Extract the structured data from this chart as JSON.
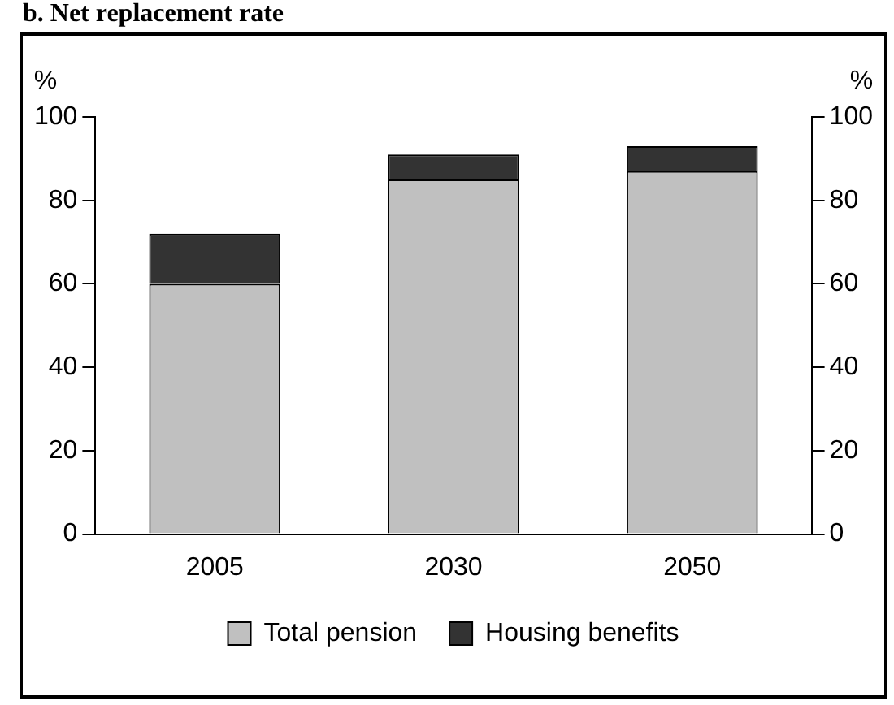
{
  "chart_data": {
    "type": "bar",
    "title": "b. Net replacement rate",
    "ylabel": "%",
    "y2label": "%",
    "categories": [
      "2005",
      "2030",
      "2050"
    ],
    "stacked": true,
    "series": [
      {
        "name": "Total pension",
        "color": "#c0c0c0",
        "values": [
          60,
          85,
          87
        ]
      },
      {
        "name": "Housing benefits",
        "color": "#333333",
        "values": [
          12,
          6,
          6
        ]
      }
    ],
    "ylim": [
      0,
      100
    ],
    "yticks": [
      0,
      20,
      40,
      60,
      80,
      100
    ],
    "y2lim": [
      0,
      100
    ],
    "y2ticks": [
      0,
      20,
      40,
      60,
      80,
      100
    ],
    "grid": false,
    "legend": "bottom"
  }
}
